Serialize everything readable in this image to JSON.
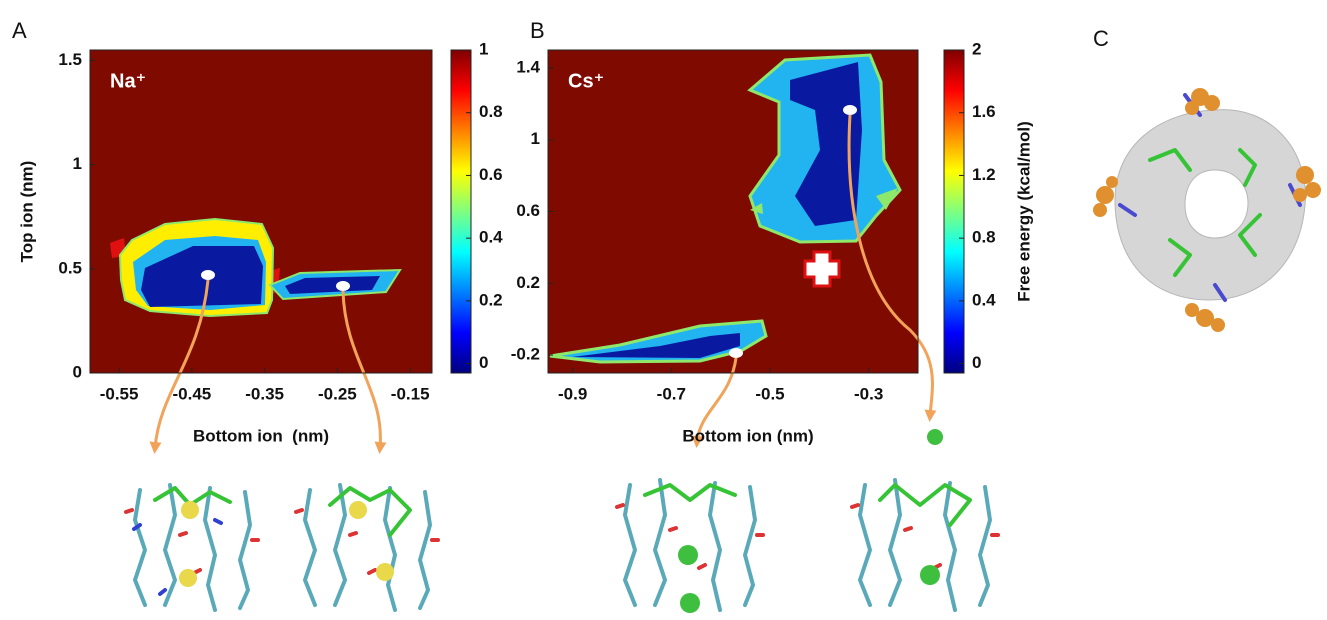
{
  "chart_data": [
    {
      "type": "contour",
      "panel": "A",
      "annotation": "Na⁺",
      "xlabel": "Bottom ion  (nm)",
      "ylabel": "Top ion (nm)",
      "xlim": [
        -0.59,
        -0.12
      ],
      "ylim": [
        0,
        1.55
      ],
      "xticks": [
        -0.55,
        -0.45,
        -0.35,
        -0.25,
        -0.15
      ],
      "yticks": [
        0,
        0.5,
        1,
        1.5
      ],
      "background": "#7f0a00",
      "colorbar": {
        "colormap": "jet",
        "lim": [
          -0.03,
          1
        ],
        "ticks": [
          0,
          0.2,
          0.4,
          0.6,
          0.8,
          1
        ]
      }
    },
    {
      "type": "contour",
      "panel": "B",
      "annotation": "Cs⁺",
      "xlabel": "Bottom ion (nm)",
      "xlim": [
        -0.95,
        -0.2
      ],
      "ylim": [
        -0.3,
        1.5
      ],
      "xticks": [
        -0.9,
        -0.7,
        -0.5,
        -0.3
      ],
      "yticks": [
        -0.2,
        0.2,
        0.6,
        1,
        1.4
      ],
      "background": "#7f0a00",
      "colorbar": {
        "colormap": "jet",
        "lim": [
          -0.06,
          2
        ],
        "ticks": [
          0,
          0.4,
          0.8,
          1.2,
          1.6,
          2
        ],
        "label": "Free energy (kcal/mol)"
      }
    }
  ],
  "panel_c": {
    "panel": "C"
  }
}
